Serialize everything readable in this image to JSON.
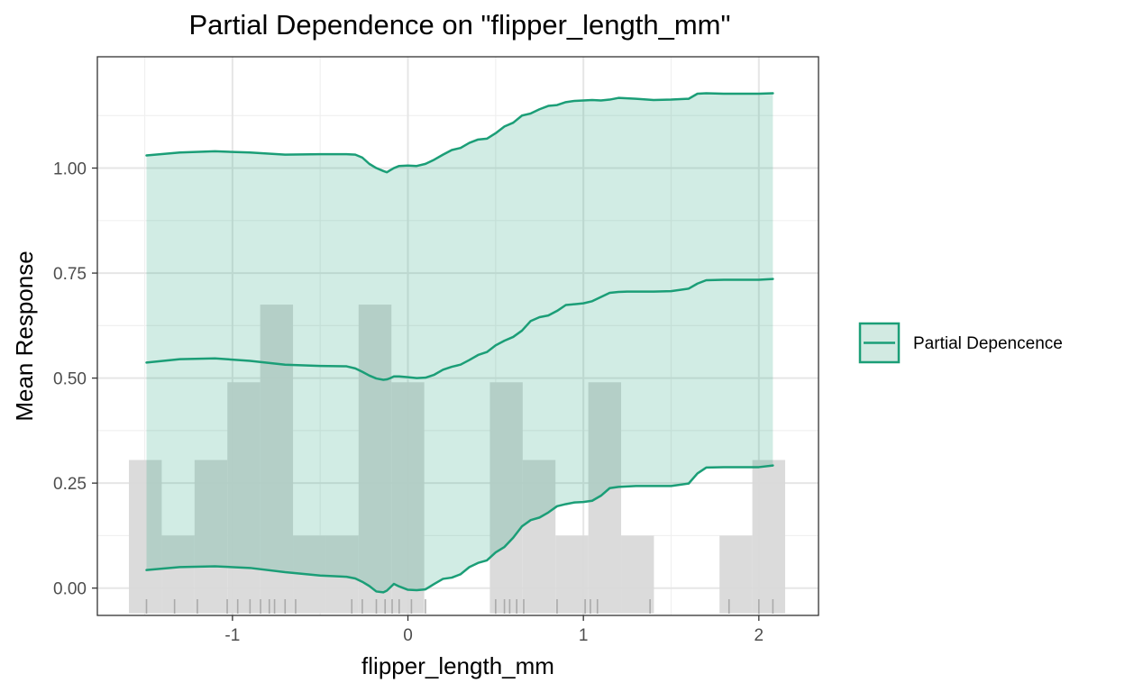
{
  "chart_data": {
    "type": "line",
    "title": "Partial Dependence on \"flipper_length_mm\"",
    "xlabel": "flipper_length_mm",
    "ylabel": "Mean Response",
    "xlim": [
      -1.77,
      2.34
    ],
    "ylim": [
      -0.065,
      1.265
    ],
    "x_ticks": [
      -1,
      0,
      1,
      2
    ],
    "x_tick_labels": [
      "-1",
      "0",
      "1",
      "2"
    ],
    "y_ticks": [
      0.0,
      0.25,
      0.5,
      0.75,
      1.0
    ],
    "y_tick_labels": [
      "0.00",
      "0.25",
      "0.50",
      "0.75",
      "1.00"
    ],
    "grid": true,
    "legend": {
      "position": "right",
      "label": "Partial Depencence"
    },
    "colors": {
      "line": "#1b9e77",
      "ribbon": "#d2eae2",
      "hist": "#d9d9d9",
      "rug": "#9a9a9a"
    },
    "series": [
      {
        "name": "Partial Depencence",
        "x": [
          -1.49,
          -1.3,
          -1.1,
          -0.9,
          -0.7,
          -0.5,
          -0.35,
          -0.3,
          -0.26,
          -0.22,
          -0.18,
          -0.14,
          -0.12,
          -0.1,
          -0.08,
          -0.05,
          0,
          0.05,
          0.1,
          0.15,
          0.2,
          0.25,
          0.3,
          0.35,
          0.4,
          0.45,
          0.5,
          0.55,
          0.6,
          0.65,
          0.7,
          0.75,
          0.8,
          0.85,
          0.9,
          0.95,
          1.0,
          1.05,
          1.1,
          1.15,
          1.2,
          1.25,
          1.3,
          1.4,
          1.5,
          1.6,
          1.65,
          1.7,
          1.8,
          1.9,
          2.0,
          2.08
        ],
        "y": [
          0.537,
          0.545,
          0.547,
          0.541,
          0.532,
          0.529,
          0.528,
          0.523,
          0.515,
          0.506,
          0.499,
          0.496,
          0.497,
          0.5,
          0.504,
          0.504,
          0.502,
          0.5,
          0.501,
          0.508,
          0.52,
          0.527,
          0.532,
          0.543,
          0.555,
          0.562,
          0.578,
          0.589,
          0.598,
          0.613,
          0.636,
          0.645,
          0.649,
          0.66,
          0.674,
          0.676,
          0.678,
          0.683,
          0.693,
          0.703,
          0.705,
          0.706,
          0.706,
          0.706,
          0.707,
          0.713,
          0.725,
          0.733,
          0.734,
          0.734,
          0.734,
          0.736
        ],
        "lower": [
          0.043,
          0.05,
          0.052,
          0.048,
          0.038,
          0.03,
          0.027,
          0.023,
          0.015,
          0.005,
          -0.008,
          -0.01,
          -0.006,
          0.002,
          0.01,
          0.004,
          -0.004,
          -0.005,
          -0.003,
          0.01,
          0.022,
          0.025,
          0.033,
          0.05,
          0.06,
          0.066,
          0.085,
          0.098,
          0.12,
          0.147,
          0.162,
          0.168,
          0.18,
          0.195,
          0.2,
          0.204,
          0.205,
          0.208,
          0.22,
          0.238,
          0.241,
          0.242,
          0.243,
          0.243,
          0.243,
          0.249,
          0.273,
          0.287,
          0.288,
          0.288,
          0.288,
          0.292
        ],
        "upper": [
          1.03,
          1.037,
          1.04,
          1.037,
          1.032,
          1.033,
          1.033,
          1.032,
          1.025,
          1.01,
          1.0,
          0.993,
          0.99,
          0.995,
          1.0,
          1.005,
          1.006,
          1.005,
          1.01,
          1.02,
          1.032,
          1.043,
          1.048,
          1.06,
          1.068,
          1.07,
          1.083,
          1.099,
          1.108,
          1.125,
          1.13,
          1.14,
          1.148,
          1.15,
          1.157,
          1.16,
          1.161,
          1.162,
          1.161,
          1.163,
          1.167,
          1.166,
          1.165,
          1.162,
          1.163,
          1.165,
          1.177,
          1.178,
          1.177,
          1.177,
          1.177,
          1.178
        ]
      }
    ],
    "histogram": {
      "bin_width": 0.187,
      "bins_start": [
        -1.59,
        -1.403,
        -1.216,
        -1.029,
        -0.842,
        -0.655,
        -0.468,
        -0.281,
        -0.094,
        0.093,
        0.28,
        0.467,
        0.654,
        0.841,
        1.028,
        1.215,
        1.402,
        1.589,
        1.776,
        1.963
      ],
      "heights": [
        0.305,
        0.125,
        0.305,
        0.49,
        0.675,
        0.125,
        0.125,
        0.675,
        0.49,
        0,
        0,
        0.49,
        0.305,
        0.125,
        0.49,
        0.125,
        0,
        0,
        0.125,
        0.305
      ]
    },
    "rug": [
      -1.49,
      -1.33,
      -1.2,
      -1.03,
      -0.97,
      -0.9,
      -0.84,
      -0.79,
      -0.76,
      -0.7,
      -0.64,
      -0.32,
      -0.26,
      -0.18,
      -0.13,
      -0.09,
      -0.05,
      0.02,
      0.1,
      0.5,
      0.55,
      0.58,
      0.62,
      0.66,
      0.85,
      1.01,
      1.04,
      1.08,
      1.38,
      1.83,
      2.0,
      2.08
    ]
  }
}
